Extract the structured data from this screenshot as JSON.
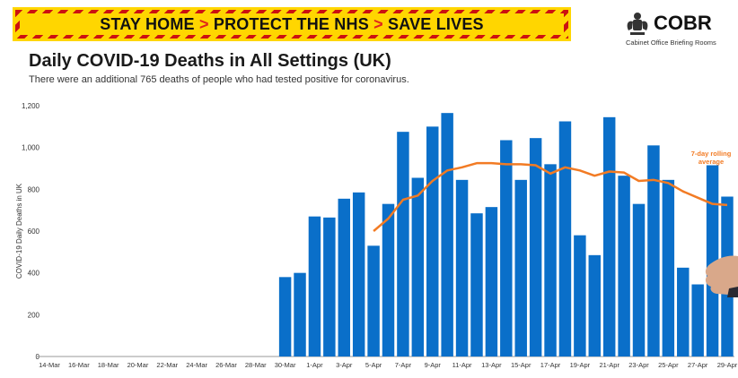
{
  "banner": {
    "part1": "STAY HOME",
    "part2": "PROTECT THE NHS",
    "part3": "SAVE LIVES",
    "chevron": ">",
    "stripe_color": "#cc1111",
    "background_color": "#ffd600"
  },
  "logo": {
    "title": "COBR",
    "subtitle": "Cabinet Office Briefing Rooms",
    "icon": "royal-crest-icon"
  },
  "header": {
    "title": "Daily COVID-19 Deaths in All Settings (UK)",
    "subtitle": "There were an additional 765 deaths of people who had tested positive for coronavirus."
  },
  "chart_data": {
    "type": "bar",
    "ylabel": "COVID-19 Daily Deaths in UK",
    "ylim": [
      0,
      1200
    ],
    "yticks": [
      0,
      200,
      400,
      600,
      800,
      1000,
      1200
    ],
    "ytick_labels": [
      "0",
      "200",
      "400",
      "600",
      "800",
      "1,000",
      "1,200"
    ],
    "grid": false,
    "legend": "none",
    "bar_color": "#0a6fc9",
    "line_color": "#f27b24",
    "annotation": "7-day rolling average",
    "categories": [
      "14-Mar",
      "15-Mar",
      "16-Mar",
      "17-Mar",
      "18-Mar",
      "19-Mar",
      "20-Mar",
      "21-Mar",
      "22-Mar",
      "23-Mar",
      "24-Mar",
      "25-Mar",
      "26-Mar",
      "27-Mar",
      "28-Mar",
      "29-Mar",
      "30-Mar",
      "31-Mar",
      "1-Apr",
      "2-Apr",
      "3-Apr",
      "4-Apr",
      "5-Apr",
      "6-Apr",
      "7-Apr",
      "8-Apr",
      "9-Apr",
      "10-Apr",
      "11-Apr",
      "12-Apr",
      "13-Apr",
      "14-Apr",
      "15-Apr",
      "16-Apr",
      "17-Apr",
      "18-Apr",
      "19-Apr",
      "20-Apr",
      "21-Apr",
      "22-Apr",
      "23-Apr",
      "24-Apr",
      "25-Apr",
      "26-Apr",
      "27-Apr",
      "28-Apr",
      "29-Apr"
    ],
    "xtick_labels": [
      "14-Mar",
      "16-Mar",
      "18-Mar",
      "20-Mar",
      "22-Mar",
      "24-Mar",
      "26-Mar",
      "28-Mar",
      "30-Mar",
      "1-Apr",
      "3-Apr",
      "5-Apr",
      "7-Apr",
      "9-Apr",
      "11-Apr",
      "13-Apr",
      "15-Apr",
      "17-Apr",
      "19-Apr",
      "21-Apr",
      "23-Apr",
      "25-Apr",
      "27-Apr",
      "29-Apr"
    ],
    "series": [
      {
        "type": "bar",
        "values": [
          null,
          null,
          null,
          null,
          null,
          null,
          null,
          null,
          null,
          null,
          null,
          null,
          null,
          null,
          null,
          null,
          380,
          400,
          670,
          665,
          755,
          785,
          530,
          730,
          1075,
          855,
          1100,
          1165,
          845,
          685,
          715,
          1035,
          845,
          1045,
          920,
          1125,
          580,
          485,
          1145,
          865,
          730,
          1010,
          845,
          425,
          345,
          915,
          765
        ]
      },
      {
        "type": "line",
        "name": "7-day rolling average",
        "values": [
          null,
          null,
          null,
          null,
          null,
          null,
          null,
          null,
          null,
          null,
          null,
          null,
          null,
          null,
          null,
          null,
          null,
          null,
          null,
          null,
          null,
          null,
          600,
          660,
          750,
          770,
          840,
          890,
          905,
          925,
          925,
          920,
          920,
          915,
          875,
          905,
          890,
          865,
          885,
          880,
          840,
          845,
          830,
          790,
          760,
          730,
          725
        ]
      }
    ]
  }
}
